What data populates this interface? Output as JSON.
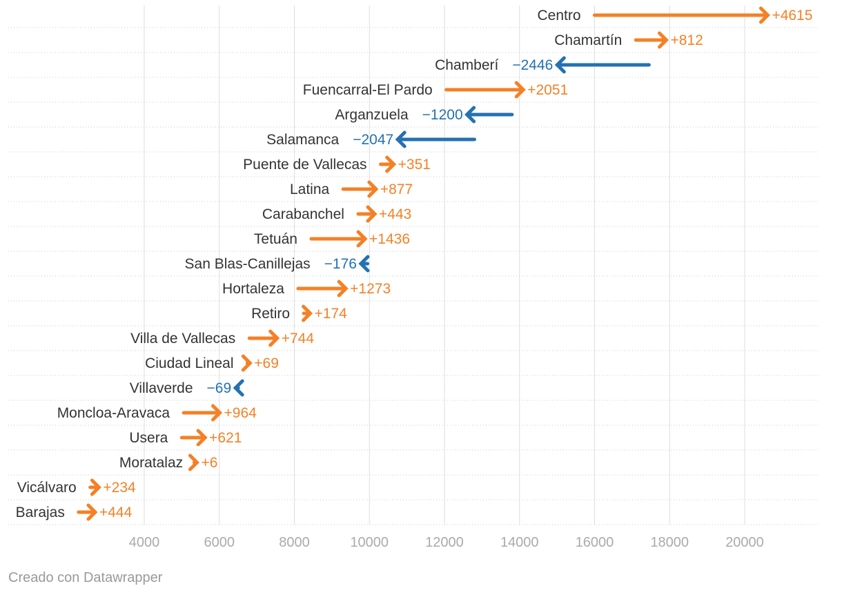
{
  "chart_data": {
    "type": "arrow",
    "title": "",
    "xlabel": "",
    "ylabel": "",
    "xlim": [
      2000,
      23500
    ],
    "xticks": [
      4000,
      6000,
      8000,
      10000,
      12000,
      14000,
      16000,
      18000,
      20000
    ],
    "grid": true,
    "series": [
      {
        "name": "Centro",
        "start": 16000,
        "end": 20615,
        "change": "+4615"
      },
      {
        "name": "Chamartín",
        "start": 17100,
        "end": 17912,
        "change": "+812"
      },
      {
        "name": "Chamberí",
        "start": 17450,
        "end": 15004,
        "change": "−2446"
      },
      {
        "name": "Fuencarral-El Pardo",
        "start": 12050,
        "end": 14101,
        "change": "+2051"
      },
      {
        "name": "Arganzuela",
        "start": 13800,
        "end": 12600,
        "change": "−1200"
      },
      {
        "name": "Salamanca",
        "start": 12800,
        "end": 10753,
        "change": "−2047"
      },
      {
        "name": "Puente de Vallecas",
        "start": 10300,
        "end": 10651,
        "change": "+351"
      },
      {
        "name": "Latina",
        "start": 9300,
        "end": 10177,
        "change": "+877"
      },
      {
        "name": "Carabanchel",
        "start": 9700,
        "end": 10143,
        "change": "+443"
      },
      {
        "name": "Tetuán",
        "start": 8450,
        "end": 9886,
        "change": "+1436"
      },
      {
        "name": "San Blas-Canillejas",
        "start": 9950,
        "end": 9774,
        "change": "−176"
      },
      {
        "name": "Hortaleza",
        "start": 8100,
        "end": 9373,
        "change": "+1273"
      },
      {
        "name": "Retiro",
        "start": 8250,
        "end": 8424,
        "change": "+174"
      },
      {
        "name": "Villa de Vallecas",
        "start": 6800,
        "end": 7544,
        "change": "+744"
      },
      {
        "name": "Ciudad Lineal",
        "start": 6750,
        "end": 6819,
        "change": "+69"
      },
      {
        "name": "Villaverde",
        "start": 6500,
        "end": 6431,
        "change": "−69"
      },
      {
        "name": "Moncloa-Aravaca",
        "start": 5050,
        "end": 6014,
        "change": "+964"
      },
      {
        "name": "Usera",
        "start": 5000,
        "end": 5621,
        "change": "+621"
      },
      {
        "name": "Moratalaz",
        "start": 5400,
        "end": 5406,
        "change": "+6"
      },
      {
        "name": "Vicálvaro",
        "start": 2560,
        "end": 2794,
        "change": "+234"
      },
      {
        "name": "Barajas",
        "start": 2250,
        "end": 2694,
        "change": "+444"
      }
    ]
  },
  "colors": {
    "increase": "#f58025",
    "decrease": "#2471b3",
    "label": "#333333",
    "tick": "#aaaaaa",
    "grid": "#dddddd",
    "row_line": "#c8c8c8"
  },
  "footer": {
    "credit": "Creado con Datawrapper"
  }
}
